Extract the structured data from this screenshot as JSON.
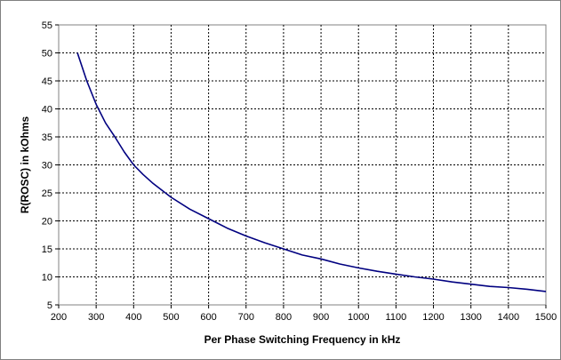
{
  "chart_data": {
    "type": "line",
    "title": "",
    "xlabel": "Per Phase Switching Frequency in kHz",
    "ylabel": "R(ROSC) in kOhms",
    "xlim": [
      200,
      1500
    ],
    "ylim": [
      5,
      55
    ],
    "xticks": [
      "200",
      "300",
      "400",
      "500",
      "600",
      "700",
      "800",
      "900",
      "1000",
      "1100",
      "1200",
      "1300",
      "1400",
      "1500"
    ],
    "yticks": [
      "5",
      "10",
      "15",
      "20",
      "25",
      "30",
      "35",
      "40",
      "45",
      "50",
      "55"
    ],
    "grid": true,
    "legend": "none",
    "series": [
      {
        "color": "#000080",
        "x": [
          250,
          275,
          300,
          325,
          350,
          375,
          400,
          425,
          450,
          500,
          550,
          600,
          650,
          700,
          750,
          800,
          850,
          900,
          950,
          1000,
          1050,
          1100,
          1150,
          1200,
          1250,
          1300,
          1350,
          1400,
          1450,
          1500
        ],
        "y": [
          50.0,
          45.0,
          40.8,
          37.5,
          35.0,
          32.3,
          30.0,
          28.3,
          26.8,
          24.2,
          22.1,
          20.4,
          18.7,
          17.3,
          16.1,
          15.0,
          13.9,
          13.2,
          12.3,
          11.6,
          11.0,
          10.5,
          10.0,
          9.6,
          9.1,
          8.7,
          8.3,
          8.1,
          7.8,
          7.4
        ]
      }
    ]
  }
}
